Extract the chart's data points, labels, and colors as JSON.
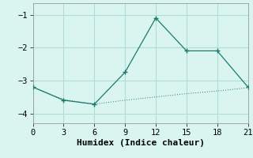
{
  "x_main": [
    0,
    3,
    6,
    9,
    12,
    15,
    18,
    21
  ],
  "y_main": [
    -3.2,
    -3.6,
    -3.72,
    -2.75,
    -1.1,
    -2.1,
    -2.1,
    -3.2
  ],
  "x_flat": [
    0,
    3,
    6,
    9,
    12,
    15,
    18,
    21
  ],
  "y_flat": [
    -3.2,
    -3.58,
    -3.72,
    -3.6,
    -3.5,
    -3.4,
    -3.32,
    -3.22
  ],
  "line_color": "#1a7a6e",
  "background_color": "#daf5f0",
  "grid_color": "#b0ddd5",
  "xlabel": "Humidex (Indice chaleur)",
  "xlim": [
    0,
    21
  ],
  "ylim": [
    -4.3,
    -0.65
  ],
  "xticks": [
    0,
    3,
    6,
    9,
    12,
    15,
    18,
    21
  ],
  "yticks": [
    -4,
    -3,
    -2,
    -1
  ],
  "xlabel_fontsize": 8,
  "tick_fontsize": 7.5
}
